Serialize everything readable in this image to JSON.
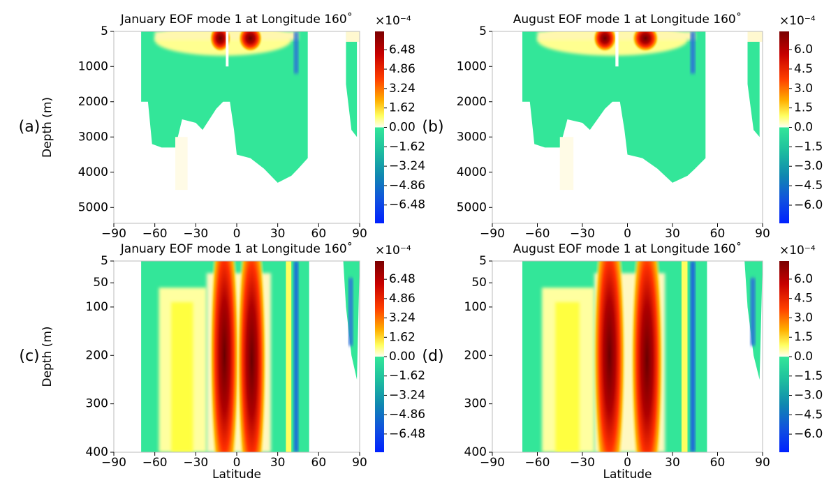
{
  "chart_data": [
    {
      "type": "contour",
      "panel_label": "(a)",
      "title": "January EOF mode 1 at Longitude 160˚",
      "ylabel": "Depth (m)",
      "xlim": [
        -90,
        90
      ],
      "xticks": [
        {
          "value": -90,
          "label": "−90"
        },
        {
          "value": -60,
          "label": "−60"
        },
        {
          "value": -30,
          "label": "−30"
        },
        0,
        30,
        60,
        90
      ],
      "ylim": [
        5,
        5450
      ],
      "yticks": [
        5,
        1000,
        2000,
        3000,
        4000,
        5000
      ],
      "colorbar": {
        "label": "×10⁻⁴",
        "lim": [
          -8.01,
          8.01
        ],
        "ticks": [
          6.48,
          4.86,
          3.24,
          1.62,
          {
            "value": 0,
            "label": "0.00"
          },
          {
            "value": -1.62,
            "label": "−1.62"
          },
          {
            "value": -3.24,
            "label": "−3.24"
          },
          {
            "value": -4.86,
            "label": "−4.86"
          },
          {
            "value": -6.48,
            "label": "−6.48"
          }
        ]
      }
    },
    {
      "type": "contour",
      "panel_label": "(b)",
      "title": "August EOF mode 1 at Longitude 160˚",
      "xlim": [
        -90,
        90
      ],
      "xticks": [
        {
          "value": -90,
          "label": "−90"
        },
        {
          "value": -60,
          "label": "−60"
        },
        {
          "value": -30,
          "label": "−30"
        },
        0,
        30,
        60,
        90
      ],
      "ylim": [
        5,
        5450
      ],
      "yticks": [
        5,
        1000,
        2000,
        3000,
        4000,
        5000
      ],
      "colorbar": {
        "label": "×10⁻⁴",
        "lim": [
          -7.4,
          7.4
        ],
        "ticks": [
          {
            "value": 6,
            "label": "6.0"
          },
          4.5,
          {
            "value": 3,
            "label": "3.0"
          },
          1.5,
          {
            "value": 0,
            "label": "0.0"
          },
          {
            "value": -1.5,
            "label": "−1.5"
          },
          {
            "value": -3,
            "label": "−3.0"
          },
          {
            "value": -4.5,
            "label": "−4.5"
          },
          {
            "value": -6,
            "label": "−6.0"
          }
        ]
      }
    },
    {
      "type": "contour",
      "panel_label": "(c)",
      "title": "January EOF mode 1 at Longitude 160˚",
      "ylabel": "Depth (m)",
      "xlabel": "Latitude",
      "xlim": [
        -90,
        90
      ],
      "xticks": [
        {
          "value": -90,
          "label": "−90"
        },
        {
          "value": -60,
          "label": "−60"
        },
        {
          "value": -30,
          "label": "−30"
        },
        0,
        30,
        60,
        90
      ],
      "ylim": [
        5,
        400
      ],
      "yticks": [
        5,
        50,
        100,
        200,
        300,
        400
      ],
      "colorbar": {
        "label": "×10⁻⁴",
        "lim": [
          -8.01,
          8.01
        ],
        "ticks": [
          6.48,
          4.86,
          3.24,
          1.62,
          {
            "value": 0,
            "label": "0.00"
          },
          {
            "value": -1.62,
            "label": "−1.62"
          },
          {
            "value": -3.24,
            "label": "−3.24"
          },
          {
            "value": -4.86,
            "label": "−4.86"
          },
          {
            "value": -6.48,
            "label": "−6.48"
          }
        ]
      }
    },
    {
      "type": "contour",
      "panel_label": "(d)",
      "title": "August EOF mode 1 at Longitude 160˚",
      "xlabel": "Latitude",
      "xlim": [
        -90,
        90
      ],
      "xticks": [
        {
          "value": -90,
          "label": "−90"
        },
        {
          "value": -60,
          "label": "−60"
        },
        {
          "value": -30,
          "label": "−30"
        },
        0,
        30,
        60,
        90
      ],
      "ylim": [
        5,
        400
      ],
      "yticks": [
        5,
        50,
        100,
        200,
        300,
        400
      ],
      "colorbar": {
        "label": "×10⁻⁴",
        "lim": [
          -7.4,
          7.4
        ],
        "ticks": [
          {
            "value": 6,
            "label": "6.0"
          },
          4.5,
          {
            "value": 3,
            "label": "3.0"
          },
          1.5,
          {
            "value": 0,
            "label": "0.0"
          },
          {
            "value": -1.5,
            "label": "−1.5"
          },
          {
            "value": -3,
            "label": "−3.0"
          },
          {
            "value": -4.5,
            "label": "−4.5"
          },
          {
            "value": -6,
            "label": "−6.0"
          }
        ]
      }
    }
  ]
}
